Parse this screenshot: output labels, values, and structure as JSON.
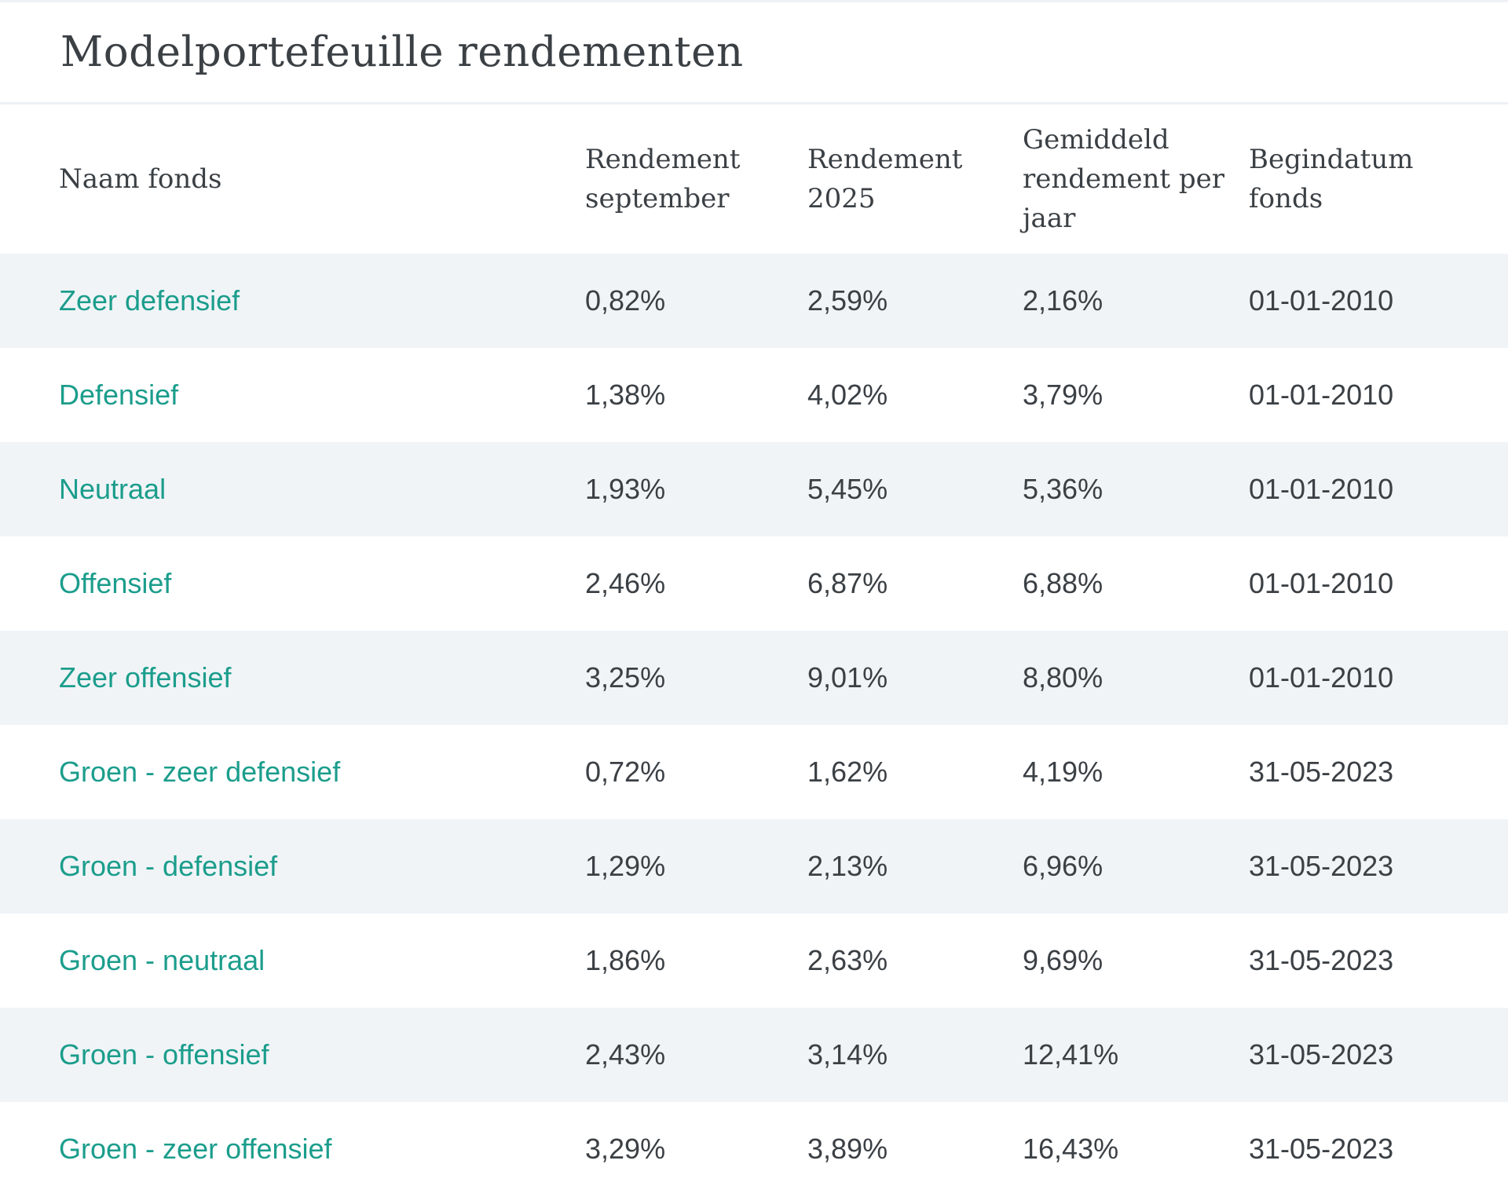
{
  "page": {
    "title": "Modelportefeuille rendementen"
  },
  "colors": {
    "accent_link": "#1b9d8c",
    "text": "#3b4045",
    "row_alternate_background": "#f0f4f7",
    "divider": "#edf1f5"
  },
  "table": {
    "columns": [
      "Naam fonds",
      "Rendement september",
      "Rendement 2025",
      "Gemiddeld rendement per jaar",
      "Begindatum fonds"
    ],
    "rows": [
      {
        "name": "Zeer defensief",
        "rendement_september": "0,82%",
        "rendement_2025": "2,59%",
        "gemiddeld_rendement": "2,16%",
        "begindatum": "01-01-2010"
      },
      {
        "name": "Defensief",
        "rendement_september": "1,38%",
        "rendement_2025": "4,02%",
        "gemiddeld_rendement": "3,79%",
        "begindatum": "01-01-2010"
      },
      {
        "name": "Neutraal",
        "rendement_september": "1,93%",
        "rendement_2025": "5,45%",
        "gemiddeld_rendement": "5,36%",
        "begindatum": "01-01-2010"
      },
      {
        "name": "Offensief",
        "rendement_september": "2,46%",
        "rendement_2025": "6,87%",
        "gemiddeld_rendement": "6,88%",
        "begindatum": "01-01-2010"
      },
      {
        "name": "Zeer offensief",
        "rendement_september": "3,25%",
        "rendement_2025": "9,01%",
        "gemiddeld_rendement": "8,80%",
        "begindatum": "01-01-2010"
      },
      {
        "name": "Groen - zeer defensief",
        "rendement_september": "0,72%",
        "rendement_2025": "1,62%",
        "gemiddeld_rendement": "4,19%",
        "begindatum": "31-05-2023"
      },
      {
        "name": "Groen - defensief",
        "rendement_september": "1,29%",
        "rendement_2025": "2,13%",
        "gemiddeld_rendement": "6,96%",
        "begindatum": "31-05-2023"
      },
      {
        "name": "Groen - neutraal",
        "rendement_september": "1,86%",
        "rendement_2025": "2,63%",
        "gemiddeld_rendement": "9,69%",
        "begindatum": "31-05-2023"
      },
      {
        "name": "Groen - offensief",
        "rendement_september": "2,43%",
        "rendement_2025": "3,14%",
        "gemiddeld_rendement": "12,41%",
        "begindatum": "31-05-2023"
      },
      {
        "name": "Groen - zeer offensief",
        "rendement_september": "3,29%",
        "rendement_2025": "3,89%",
        "gemiddeld_rendement": "16,43%",
        "begindatum": "31-05-2023"
      }
    ]
  }
}
